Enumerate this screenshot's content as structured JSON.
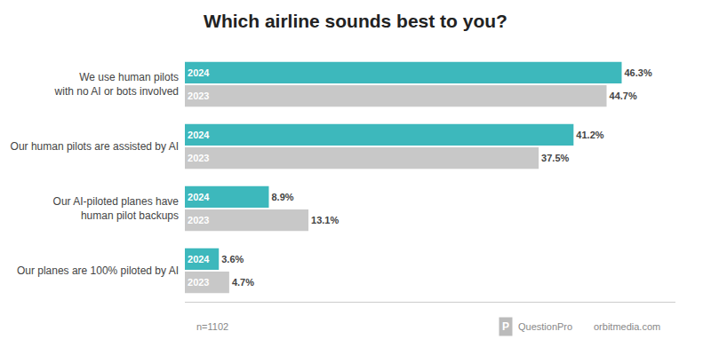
{
  "chart_data": {
    "type": "bar",
    "orientation": "horizontal",
    "title": "Which airline sounds best to you?",
    "categories": [
      "We use human pilots\nwith no AI or bots involved",
      "Our human pilots are assisted by AI",
      "Our AI-piloted planes have\nhuman pilot backups",
      "Our planes are 100% piloted by AI"
    ],
    "series": [
      {
        "name": "2024",
        "color": "#3db8bc",
        "values": [
          46.3,
          41.2,
          8.9,
          3.6
        ],
        "value_labels": [
          "46.3%",
          "41.2%",
          "8.9%",
          "3.6%"
        ]
      },
      {
        "name": "2023",
        "color": "#c8c8c8",
        "values": [
          44.7,
          37.5,
          13.1,
          4.7
        ],
        "value_labels": [
          "44.7%",
          "37.5%",
          "13.1%",
          "4.7%"
        ]
      }
    ],
    "xlim": [
      0,
      52
    ],
    "data_labels": true,
    "tick_labels": "y",
    "grid": false,
    "annotations": [
      "n=1102",
      "P",
      "QuestionPro",
      "orbitmedia.com"
    ]
  }
}
